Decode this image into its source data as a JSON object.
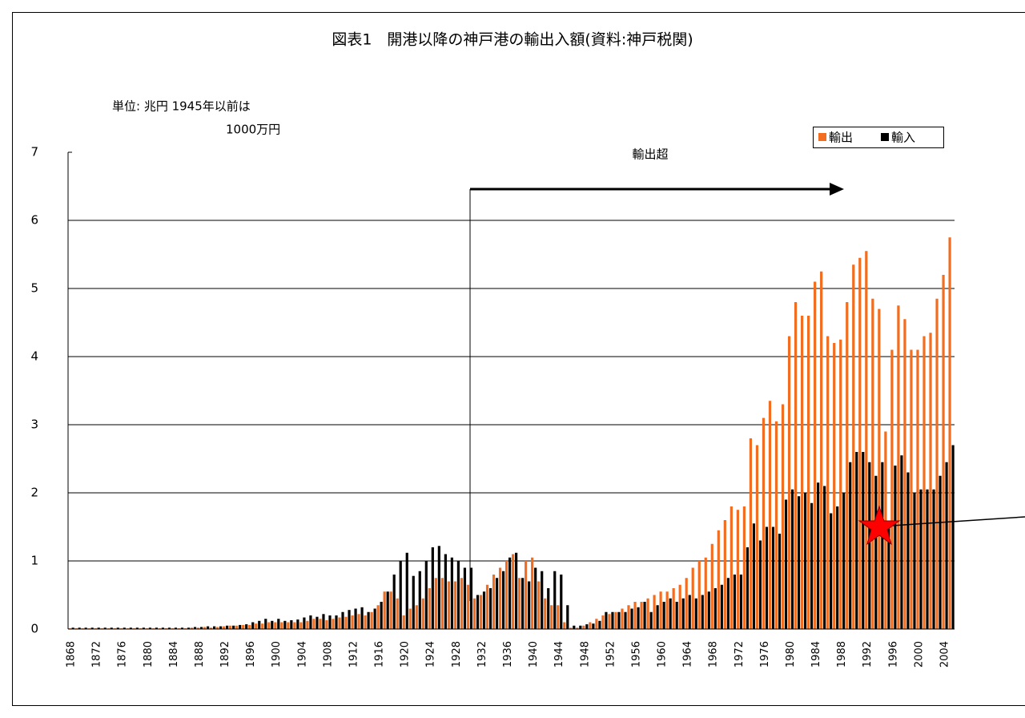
{
  "chart_data": {
    "type": "bar",
    "title": "図表1　開港以降の神戸港の輸出入額(資料:神戸税関)",
    "unit_note": [
      "単位: 兆円  1945年以前は",
      "1000万円"
    ],
    "annotation": "輸出超",
    "categories": [
      "1868",
      null,
      null,
      null,
      "1872",
      null,
      null,
      null,
      "1876",
      null,
      null,
      null,
      "1880",
      null,
      null,
      null,
      "1884",
      null,
      null,
      null,
      "1888",
      null,
      null,
      null,
      "1892",
      null,
      null,
      null,
      "1896",
      null,
      null,
      null,
      "1900",
      null,
      null,
      null,
      "1904",
      null,
      null,
      null,
      "1908",
      null,
      null,
      null,
      "1912",
      null,
      null,
      null,
      "1916",
      null,
      null,
      null,
      "1920",
      null,
      null,
      null,
      "1924",
      null,
      null,
      null,
      "1928",
      null,
      null,
      null,
      "1932",
      null,
      null,
      null,
      "1936",
      null,
      null,
      null,
      "1940",
      null,
      null,
      null,
      "1944",
      null,
      null,
      null,
      "1948",
      null,
      null,
      null,
      "1952",
      null,
      null,
      null,
      "1956",
      null,
      null,
      null,
      "1960",
      null,
      null,
      null,
      "1964",
      null,
      null,
      null,
      "1968",
      null,
      null,
      null,
      "1972",
      null,
      null,
      null,
      "1976",
      null,
      null,
      null,
      "1980",
      null,
      null,
      null,
      "1984",
      null,
      null,
      null,
      "1988",
      null,
      null,
      null,
      "1992",
      null,
      null,
      null,
      "1996",
      null,
      null,
      null,
      "2000",
      null,
      null,
      null,
      "2004",
      null
    ],
    "series": [
      {
        "name": "輸出",
        "color": "#f26d1f",
        "values": [
          0.01,
          0.01,
          0.01,
          0.01,
          0.01,
          0.01,
          0.01,
          0.01,
          0.01,
          0.01,
          0.01,
          0.01,
          0.01,
          0.01,
          0.01,
          0.01,
          0.01,
          0.01,
          0.01,
          0.02,
          0.02,
          0.03,
          0.02,
          0.03,
          0.04,
          0.05,
          0.05,
          0.06,
          0.06,
          0.08,
          0.08,
          0.1,
          0.1,
          0.1,
          0.1,
          0.1,
          0.1,
          0.12,
          0.15,
          0.15,
          0.13,
          0.15,
          0.17,
          0.18,
          0.2,
          0.22,
          0.2,
          0.25,
          0.35,
          0.55,
          0.55,
          0.45,
          0.2,
          0.3,
          0.35,
          0.45,
          0.6,
          0.75,
          0.75,
          0.7,
          0.7,
          0.75,
          0.65,
          0.45,
          0.5,
          0.65,
          0.8,
          0.9,
          1.0,
          1.1,
          0.75,
          1.0,
          1.05,
          0.7,
          0.45,
          0.35,
          0.35,
          0.1,
          0.02,
          0.02,
          0.05,
          0.1,
          0.15,
          0.2,
          0.22,
          0.25,
          0.3,
          0.35,
          0.4,
          0.4,
          0.45,
          0.5,
          0.55,
          0.55,
          0.6,
          0.65,
          0.75,
          0.9,
          1.0,
          1.05,
          1.25,
          1.45,
          1.6,
          1.8,
          1.75,
          1.8,
          2.8,
          2.7,
          3.1,
          3.35,
          3.05,
          3.3,
          4.3,
          4.8,
          4.6,
          4.6,
          5.1,
          5.25,
          4.3,
          4.2,
          4.25,
          4.8,
          5.35,
          5.45,
          5.55,
          4.85,
          4.7,
          2.9,
          4.1,
          4.75,
          4.55,
          4.1,
          4.1,
          4.3,
          4.35,
          4.85,
          5.2,
          5.75
        ]
      },
      {
        "name": "輸入",
        "color": "#000000",
        "values": [
          0.02,
          0.02,
          0.02,
          0.02,
          0.02,
          0.02,
          0.02,
          0.02,
          0.02,
          0.02,
          0.02,
          0.02,
          0.02,
          0.02,
          0.02,
          0.02,
          0.02,
          0.02,
          0.02,
          0.03,
          0.03,
          0.04,
          0.04,
          0.04,
          0.05,
          0.05,
          0.06,
          0.07,
          0.1,
          0.12,
          0.15,
          0.12,
          0.15,
          0.12,
          0.13,
          0.14,
          0.17,
          0.2,
          0.18,
          0.22,
          0.2,
          0.2,
          0.25,
          0.28,
          0.3,
          0.32,
          0.25,
          0.3,
          0.4,
          0.55,
          0.8,
          1.0,
          1.12,
          0.78,
          0.85,
          1.0,
          1.2,
          1.22,
          1.1,
          1.05,
          1.0,
          0.9,
          0.9,
          0.5,
          0.55,
          0.6,
          0.75,
          0.85,
          1.05,
          1.12,
          0.75,
          0.7,
          0.9,
          0.85,
          0.6,
          0.85,
          0.8,
          0.35,
          0.05,
          0.05,
          0.07,
          0.08,
          0.12,
          0.25,
          0.25,
          0.25,
          0.25,
          0.3,
          0.32,
          0.4,
          0.25,
          0.35,
          0.4,
          0.45,
          0.4,
          0.45,
          0.5,
          0.45,
          0.5,
          0.55,
          0.6,
          0.65,
          0.75,
          0.8,
          0.8,
          1.2,
          1.55,
          1.3,
          1.5,
          1.5,
          1.4,
          1.9,
          2.05,
          1.95,
          2.0,
          1.85,
          2.15,
          2.1,
          1.7,
          1.8,
          2.0,
          2.45,
          2.6,
          2.6,
          2.45,
          2.25,
          2.45,
          1.5,
          2.4,
          2.55,
          2.3,
          2.0,
          2.05,
          2.05,
          2.05,
          2.25,
          2.45,
          2.7
        ]
      }
    ],
    "ylim": [
      0,
      7
    ],
    "yticks": [
      0,
      1,
      2,
      3,
      4,
      5,
      6,
      7
    ],
    "grid": true,
    "legend": "top-right"
  }
}
